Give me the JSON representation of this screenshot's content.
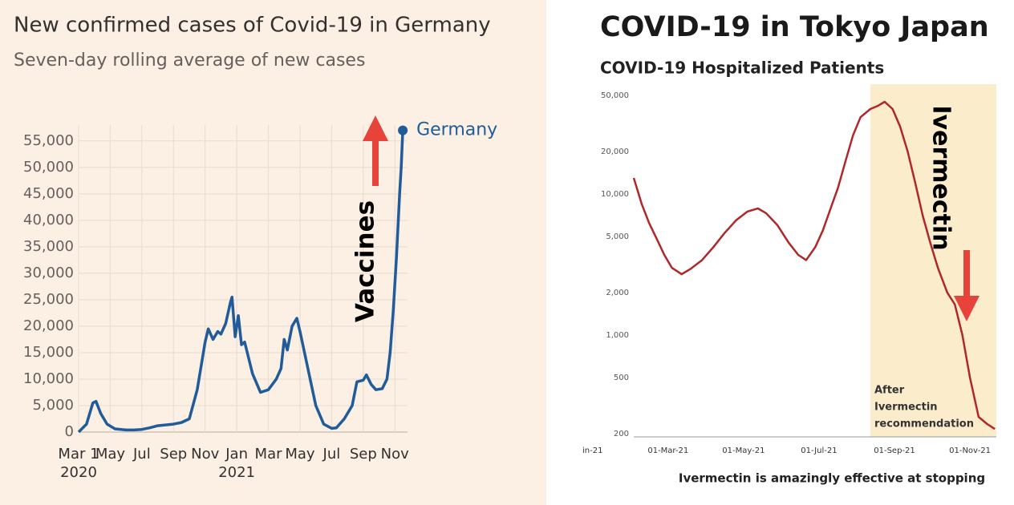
{
  "chart_data": [
    {
      "type": "line",
      "title": "New confirmed cases of Covid-19 in Germany",
      "subtitle": "Seven-day rolling average of new cases",
      "x": [
        0,
        0.5,
        0.9,
        1.1,
        1.4,
        1.8,
        2.3,
        3,
        3.5,
        4,
        4.5,
        5,
        6,
        6.5,
        7,
        7.5,
        8,
        8.2,
        8.5,
        8.8,
        9,
        9.3,
        9.6,
        9.7,
        9.9,
        10.1,
        10.3,
        10.5,
        11,
        11.5,
        12,
        12.5,
        12.8,
        13,
        13.2,
        13.5,
        13.8,
        14,
        14.5,
        15,
        15.5,
        16,
        16.3,
        16.8,
        17.3,
        17.6,
        18,
        18.2,
        18.5,
        18.8,
        19.2,
        19.5,
        19.7,
        19.9,
        20.1,
        20.3,
        20.4,
        20.5
      ],
      "series": [
        {
          "name": "Germany",
          "color": "#1f5c99",
          "values": [
            0,
            1500,
            5500,
            5800,
            3500,
            1500,
            600,
            400,
            400,
            500,
            800,
            1200,
            1500,
            1800,
            2500,
            8000,
            17000,
            19500,
            17500,
            19000,
            18500,
            20500,
            24500,
            25500,
            18000,
            22000,
            16500,
            17000,
            11000,
            7500,
            8000,
            10000,
            12000,
            17500,
            15500,
            20000,
            21500,
            19000,
            12000,
            5000,
            1500,
            700,
            800,
            2500,
            5000,
            9500,
            9800,
            10800,
            9000,
            8000,
            8200,
            10000,
            15000,
            23000,
            33000,
            45000,
            50000,
            57000
          ]
        }
      ],
      "xlim": [
        0,
        20.8
      ],
      "xticks": [
        {
          "value": 0,
          "label": "Mar 1"
        },
        {
          "value": 2,
          "label": "May"
        },
        {
          "value": 4,
          "label": "Jul"
        },
        {
          "value": 6,
          "label": "Sep"
        },
        {
          "value": 8,
          "label": "Nov"
        },
        {
          "value": 10,
          "label": "Jan"
        },
        {
          "value": 12,
          "label": "Mar"
        },
        {
          "value": 14,
          "label": "May"
        },
        {
          "value": 16,
          "label": "Jul"
        },
        {
          "value": 18,
          "label": "Sep"
        },
        {
          "value": 20,
          "label": "Nov"
        }
      ],
      "x_year_labels": [
        {
          "value": 0,
          "label": "2020"
        },
        {
          "value": 10,
          "label": "2021"
        }
      ],
      "ylim": [
        0,
        58000
      ],
      "yticks": [
        0,
        {
          "value": 5000,
          "label": "5,000"
        },
        {
          "value": 10000,
          "label": "10,000"
        },
        {
          "value": 15000,
          "label": "15,000"
        },
        {
          "value": 20000,
          "label": "20,000"
        },
        {
          "value": 25000,
          "label": "25,000"
        },
        {
          "value": 30000,
          "label": "30,000"
        },
        {
          "value": 35000,
          "label": "35,000"
        },
        {
          "value": 40000,
          "label": "40,000"
        },
        {
          "value": 45000,
          "label": "45,000"
        },
        {
          "value": 50000,
          "label": "50,000"
        },
        {
          "value": 55000,
          "label": "55,000"
        }
      ],
      "grid": true,
      "annotation": "Vaccines"
    },
    {
      "type": "line",
      "title": "COVID-19 in Tokyo Japan",
      "subtitle": "COVID-19 Hospitalized Patients",
      "x": [
        1.09,
        1.3,
        1.5,
        1.7,
        1.9,
        2.1,
        2.36,
        2.6,
        2.9,
        3.2,
        3.5,
        3.8,
        4.1,
        4.38,
        4.6,
        4.9,
        5.2,
        5.45,
        5.66,
        5.9,
        6.1,
        6.3,
        6.5,
        6.7,
        6.9,
        7.1,
        7.36,
        7.55,
        7.74,
        7.95,
        8.15,
        8.35,
        8.55,
        8.75,
        8.95,
        9.15,
        9.4,
        9.6,
        9.8,
        10,
        10.23,
        10.45,
        10.66
      ],
      "values": [
        13000,
        8500,
        6200,
        4800,
        3700,
        3000,
        2700,
        2950,
        3400,
        4200,
        5300,
        6500,
        7500,
        7900,
        7300,
        6000,
        4500,
        3700,
        3400,
        4200,
        5500,
        7800,
        11000,
        17000,
        26000,
        35000,
        40000,
        42000,
        45000,
        40000,
        30000,
        20000,
        12000,
        7000,
        4500,
        3000,
        2000,
        1650,
        1000,
        500,
        263,
        235,
        216
      ],
      "color": "#b0272a",
      "log_scale": true,
      "xlim": [
        1.09,
        10.7
      ],
      "xticks": [
        {
          "value": 0,
          "label": "in-21"
        },
        {
          "value": 2,
          "label": "01-Mar-21"
        },
        {
          "value": 4,
          "label": "01-May-21"
        },
        {
          "value": 6,
          "label": "01-Jul-21"
        },
        {
          "value": 8,
          "label": "01-Sep-21"
        },
        {
          "value": 10,
          "label": "01-Nov-21"
        }
      ],
      "ylim": [
        190,
        60000
      ],
      "yticks": [
        200,
        500,
        {
          "value": 1000,
          "label": "1,000"
        },
        {
          "value": 2000,
          "label": "2,000"
        },
        {
          "value": 5000,
          "label": "5,000"
        },
        {
          "value": 10000,
          "label": "10,000"
        },
        {
          "value": 20000,
          "label": "20,000"
        },
        {
          "value": 50000,
          "label": "50,000"
        }
      ],
      "highlight_x": [
        7.36,
        10.7
      ],
      "highlight_note": [
        "After",
        "Ivermectin",
        "recommendation"
      ],
      "annotation": "Ivermectin",
      "caption": "Ivermectin is amazingly effective at stopping"
    }
  ]
}
